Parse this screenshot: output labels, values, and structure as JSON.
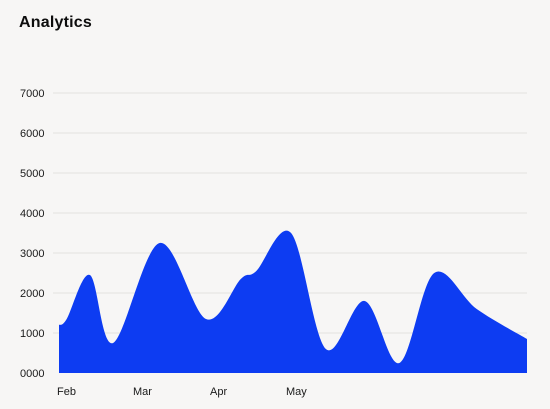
{
  "header": {
    "title": "Analytics"
  },
  "colors": {
    "area": "#0d3cf2",
    "grid": "#e3e1df",
    "background": "#f7f6f5"
  },
  "chart_data": {
    "type": "area",
    "title": "Analytics",
    "xlabel": "",
    "ylabel": "",
    "grid": true,
    "legend": "none",
    "y_ticks": [
      {
        "label": "7000",
        "value": 7000
      },
      {
        "label": "6000",
        "value": 6000
      },
      {
        "label": "5000",
        "value": 5000
      },
      {
        "label": "4000",
        "value": 4000
      },
      {
        "label": "3000",
        "value": 3000
      },
      {
        "label": "2000",
        "value": 2000
      },
      {
        "label": "1000",
        "value": 1000
      },
      {
        "label": "0000",
        "value": 0
      }
    ],
    "x_ticks": [
      {
        "label": "Feb",
        "value": 0
      },
      {
        "label": "Mar",
        "value": 1
      },
      {
        "label": "Apr",
        "value": 2
      },
      {
        "label": "May",
        "value": 3
      }
    ],
    "xlim": [
      -0.05,
      6.0
    ],
    "ylim": [
      0,
      7000
    ],
    "series": [
      {
        "name": "Analytics",
        "x": [
          -0.05,
          0.05,
          0.35,
          0.65,
          1.25,
          1.85,
          2.3,
          2.5,
          2.95,
          3.4,
          3.9,
          4.35,
          4.8,
          5.35,
          6.0
        ],
        "values": [
          1200,
          1350,
          2450,
          750,
          3250,
          1350,
          2350,
          2550,
          3500,
          600,
          1800,
          250,
          2500,
          1600,
          850
        ]
      }
    ]
  }
}
